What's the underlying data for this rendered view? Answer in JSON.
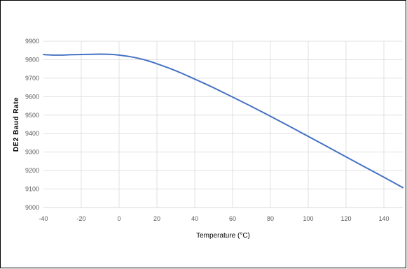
{
  "chart_data": {
    "type": "line",
    "title": "",
    "xlabel": "Temperature (°C)",
    "ylabel": "DE2 Baud Rate",
    "xlim": [
      -40,
      150
    ],
    "ylim": [
      9000,
      9900
    ],
    "xticks": [
      -40,
      -20,
      0,
      20,
      40,
      60,
      80,
      100,
      120,
      140
    ],
    "yticks": [
      9000,
      9100,
      9200,
      9300,
      9400,
      9500,
      9600,
      9700,
      9800,
      9900
    ],
    "grid": true,
    "legend": "none",
    "series": [
      {
        "color": "#4472C4",
        "x": [
          -40,
          -35,
          -30,
          -25,
          -20,
          -15,
          -10,
          -5,
          0,
          5,
          10,
          15,
          20,
          25,
          30,
          35,
          40,
          45,
          50,
          60,
          70,
          80,
          90,
          100,
          110,
          120,
          130,
          140,
          150
        ],
        "y": [
          9828,
          9825,
          9825,
          9827,
          9828,
          9829,
          9830,
          9829,
          9825,
          9818,
          9808,
          9795,
          9778,
          9760,
          9740,
          9718,
          9695,
          9672,
          9648,
          9598,
          9547,
          9494,
          9440,
          9385,
          9330,
          9274,
          9219,
          9164,
          9108
        ]
      }
    ]
  }
}
